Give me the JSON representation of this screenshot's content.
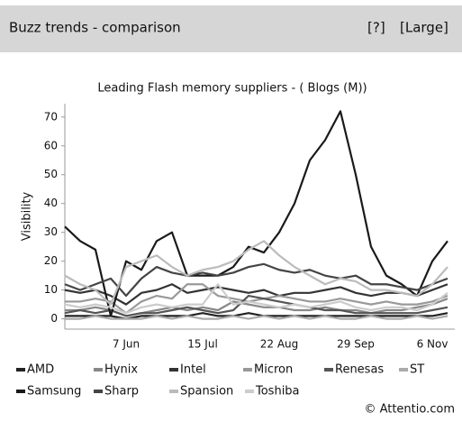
{
  "header": {
    "title": "Buzz trends - comparison",
    "links": [
      "[?]",
      "[Large]"
    ]
  },
  "chart_data": {
    "type": "line",
    "title": "Leading Flash memory suppliers - ( Blogs (M))",
    "y_label": "Visibility",
    "categories": [
      null,
      null,
      null,
      null,
      "7 Jun",
      null,
      null,
      null,
      null,
      "15 Jul",
      null,
      null,
      null,
      null,
      "22 Aug",
      null,
      null,
      null,
      null,
      "29 Sep",
      null,
      null,
      null,
      null,
      "6 Nov",
      null
    ],
    "ylim": [
      -2,
      74
    ],
    "yticks": [
      0,
      10,
      20,
      30,
      40,
      50,
      60,
      70
    ],
    "legend": "bottom",
    "series": [
      {
        "name": "AMD",
        "color": "#222222",
        "values": [
          1,
          1,
          1,
          1,
          0,
          1,
          1,
          1,
          1,
          2,
          1,
          1,
          2,
          1,
          1,
          1,
          1,
          1,
          1,
          1,
          1,
          1,
          1,
          1,
          1,
          2
        ]
      },
      {
        "name": "Hynix",
        "color": "#888888",
        "values": [
          3,
          3,
          4,
          3,
          1,
          2,
          3,
          4,
          3,
          4,
          3,
          6,
          5,
          4,
          4,
          3,
          3,
          4,
          3,
          3,
          2,
          3,
          3,
          4,
          5,
          7
        ]
      },
      {
        "name": "Intel",
        "color": "#333333",
        "values": [
          10,
          9,
          10,
          8,
          5,
          9,
          10,
          12,
          9,
          10,
          11,
          10,
          9,
          10,
          8,
          9,
          9,
          10,
          11,
          9,
          8,
          9,
          9,
          8,
          10,
          12
        ]
      },
      {
        "name": "Micron",
        "color": "#999999",
        "values": [
          6,
          6,
          7,
          6,
          2,
          6,
          8,
          7,
          12,
          12,
          8,
          7,
          6,
          7,
          8,
          7,
          6,
          6,
          7,
          6,
          5,
          6,
          5,
          5,
          6,
          8
        ]
      },
      {
        "name": "Renesas",
        "color": "#555555",
        "values": [
          2,
          3,
          2,
          3,
          1,
          2,
          2,
          3,
          4,
          3,
          2,
          3,
          8,
          7,
          6,
          5,
          4,
          3,
          3,
          2,
          2,
          2,
          2,
          2,
          3,
          4
        ]
      },
      {
        "name": "ST",
        "color": "#aaaaaa",
        "values": [
          0,
          0,
          1,
          0,
          0,
          0,
          1,
          0,
          1,
          0,
          0,
          1,
          0,
          1,
          0,
          1,
          0,
          1,
          0,
          0,
          1,
          0,
          0,
          1,
          0,
          1
        ]
      },
      {
        "name": "Samsung",
        "color": "#1a1a1a",
        "values": [
          32,
          27,
          24,
          1,
          20,
          17,
          27,
          30,
          15,
          15,
          15,
          18,
          25,
          23,
          30,
          40,
          55,
          62,
          72,
          50,
          25,
          15,
          12,
          8,
          20,
          27
        ]
      },
      {
        "name": "Sharp",
        "color": "#444444",
        "values": [
          12,
          10,
          12,
          14,
          8,
          14,
          18,
          16,
          15,
          16,
          15,
          16,
          18,
          19,
          17,
          16,
          17,
          15,
          14,
          15,
          12,
          12,
          11,
          10,
          12,
          14
        ]
      },
      {
        "name": "Spansion",
        "color": "#bbbbbb",
        "values": [
          15,
          12,
          10,
          5,
          18,
          20,
          22,
          18,
          15,
          17,
          18,
          20,
          24,
          27,
          22,
          18,
          15,
          12,
          14,
          13,
          10,
          10,
          9,
          8,
          12,
          18
        ]
      },
      {
        "name": "Toshiba",
        "color": "#cccccc",
        "values": [
          5,
          4,
          5,
          4,
          2,
          4,
          5,
          4,
          5,
          5,
          12,
          5,
          6,
          5,
          4,
          5,
          4,
          5,
          6,
          4,
          3,
          4,
          4,
          3,
          5,
          9
        ]
      }
    ]
  },
  "footer": "© Attentio.com"
}
